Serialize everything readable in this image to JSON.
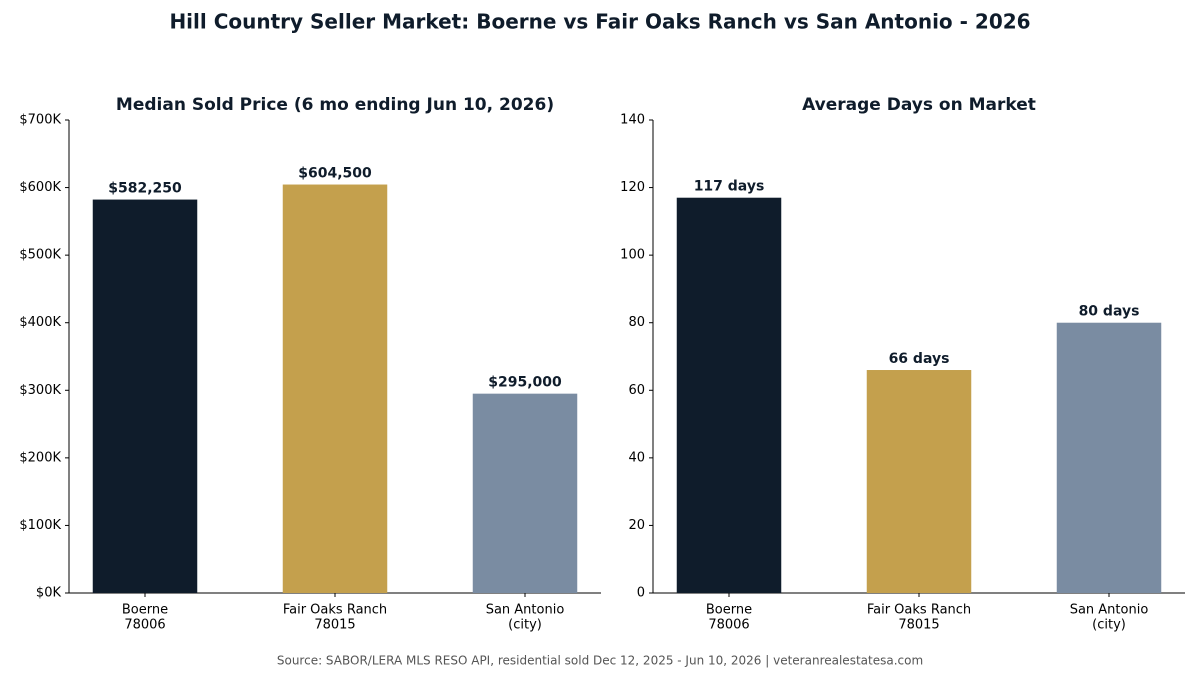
{
  "title": "Hill Country Seller Market: Boerne vs Fair Oaks Ranch vs San Antonio - 2026",
  "source": "Source: SABOR/LERA MLS RESO API, residential sold Dec 12, 2025 - Jun 10, 2026 | veteranrealestatesa.com",
  "chart_data": [
    {
      "type": "bar",
      "title": "Median Sold Price (6 mo ending Jun 10, 2026)",
      "categories": [
        [
          "Boerne",
          "78006"
        ],
        [
          "Fair Oaks Ranch",
          "78015"
        ],
        [
          "San Antonio",
          "(city)"
        ]
      ],
      "values": [
        582250,
        604500,
        295000
      ],
      "value_labels": [
        "$582,250",
        "$604,500",
        "$295,000"
      ],
      "colors": [
        "#0f1c2b",
        "#c4a04d",
        "#7a8ca2"
      ],
      "ylim": [
        0,
        700000
      ],
      "yticks": [
        {
          "value": 0,
          "label": "$0K"
        },
        {
          "value": 100000,
          "label": "$100K"
        },
        {
          "value": 200000,
          "label": "$200K"
        },
        {
          "value": 300000,
          "label": "$300K"
        },
        {
          "value": 400000,
          "label": "$400K"
        },
        {
          "value": 500000,
          "label": "$500K"
        },
        {
          "value": 600000,
          "label": "$600K"
        },
        {
          "value": 700000,
          "label": "$700K"
        }
      ],
      "grid": false
    },
    {
      "type": "bar",
      "title": "Average Days on Market",
      "categories": [
        [
          "Boerne",
          "78006"
        ],
        [
          "Fair Oaks Ranch",
          "78015"
        ],
        [
          "San Antonio",
          "(city)"
        ]
      ],
      "values": [
        117,
        66,
        80
      ],
      "value_labels": [
        "117 days",
        "66 days",
        "80 days"
      ],
      "colors": [
        "#0f1c2b",
        "#c4a04d",
        "#7a8ca2"
      ],
      "ylim": [
        0,
        140
      ],
      "yticks": [
        0,
        20,
        40,
        60,
        80,
        100,
        120,
        140
      ],
      "grid": false
    }
  ]
}
